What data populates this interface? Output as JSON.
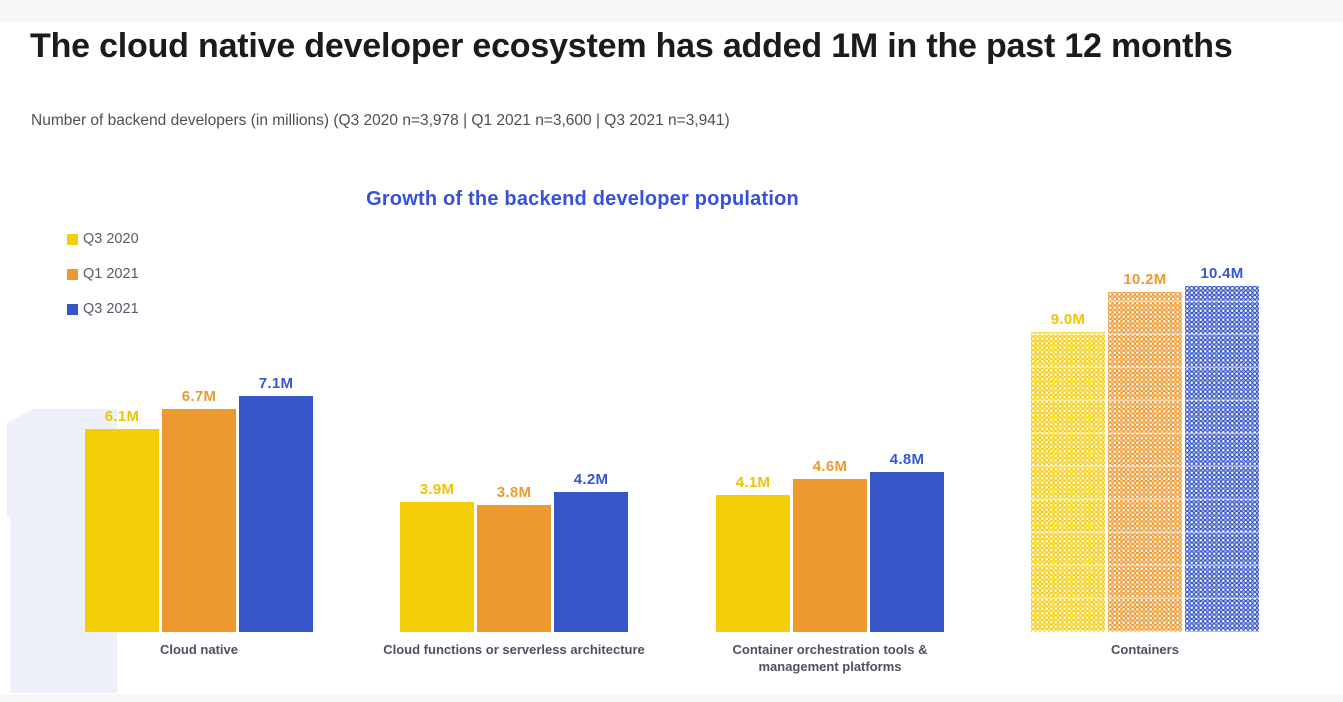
{
  "page": {
    "title": "The cloud native developer ecosystem has added 1M in the past 12 months",
    "subtitle": "Number of backend developers (in millions) (Q3 2020 n=3,978 | Q1 2021 n=3,600 | Q3 2021 n=3,941)",
    "watermark_digit": "1",
    "background_color": "#ffffff",
    "edge_strip_color": "#f7f7f8",
    "watermark_color": "#edf0f8"
  },
  "chart_data": {
    "type": "bar",
    "title": "Growth of the backend developer population",
    "title_color": "#3752d6",
    "value_suffix": "M",
    "grid": false,
    "legend_position": "top-left",
    "ylim": [
      0,
      11
    ],
    "categories": [
      "Cloud native",
      "Cloud functions or serverless architecture",
      "Container orchestration tools &\nmanagement platforms",
      "Containers"
    ],
    "series": [
      {
        "name": "Q3 2020",
        "color": "#f5ce0a",
        "label_color": "#f2c200",
        "values": [
          6.1,
          3.9,
          4.1,
          9.0
        ]
      },
      {
        "name": "Q1 2021",
        "color": "#ed9930",
        "label_color": "#ed9930",
        "values": [
          6.7,
          3.8,
          4.6,
          10.2
        ]
      },
      {
        "name": "Q3 2021",
        "color": "#3656c8",
        "label_color": "#3656d2",
        "values": [
          7.1,
          4.2,
          4.8,
          10.4
        ]
      }
    ],
    "patterned_categories": [
      "Containers"
    ]
  }
}
